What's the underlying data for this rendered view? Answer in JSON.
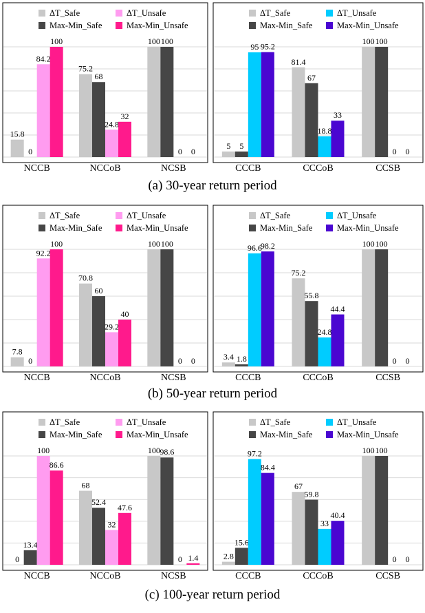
{
  "colors": {
    "dt_safe": "#c8c8c8",
    "mm_safe": "#464646",
    "dt_unsafe_pink": "#ff9cf0",
    "mm_unsafe_pink": "#ff1a8c",
    "dt_unsafe_cyan": "#00ccff",
    "mm_unsafe_purple": "#4a06d1",
    "grid": "#d9d9d9",
    "frame": "#000000"
  },
  "captions": [
    "(a) 30-year return period",
    "(b) 50-year return period",
    "(c) 100-year return period"
  ],
  "chart_data": [
    {
      "type": "bar",
      "categories": [
        "NCCB",
        "NCCoB",
        "NCSB"
      ],
      "series": [
        {
          "name": "ΔT_Safe",
          "values": [
            15.8,
            75.2,
            100
          ]
        },
        {
          "name": "Max-Min_Safe",
          "values": [
            0,
            68,
            100
          ]
        },
        {
          "name": "ΔT_Unsafe",
          "values": [
            84.2,
            24.8,
            0
          ]
        },
        {
          "name": "Max-Min_Unsafe",
          "values": [
            100,
            32,
            0
          ]
        }
      ],
      "ylim": [
        0,
        100
      ],
      "grid": true,
      "legend": "top"
    },
    {
      "type": "bar",
      "categories": [
        "CCCB",
        "CCCoB",
        "CCSB"
      ],
      "series": [
        {
          "name": "ΔT_Safe",
          "values": [
            5,
            81.4,
            100
          ]
        },
        {
          "name": "Max-Min_Safe",
          "values": [
            5,
            67,
            100
          ]
        },
        {
          "name": "ΔT_Unsafe",
          "values": [
            95,
            18.8,
            0
          ]
        },
        {
          "name": "Max-Min_Unsafe",
          "values": [
            95.2,
            33,
            0
          ]
        }
      ],
      "ylim": [
        0,
        100
      ],
      "grid": true,
      "legend": "top"
    },
    {
      "type": "bar",
      "categories": [
        "NCCB",
        "NCCoB",
        "NCSB"
      ],
      "series": [
        {
          "name": "ΔT_Safe",
          "values": [
            7.8,
            70.8,
            100
          ]
        },
        {
          "name": "Max-Min_Safe",
          "values": [
            0,
            60,
            100
          ]
        },
        {
          "name": "ΔT_Unsafe",
          "values": [
            92.2,
            29.2,
            0
          ]
        },
        {
          "name": "Max-Min_Unsafe",
          "values": [
            100,
            40,
            0
          ]
        }
      ],
      "ylim": [
        0,
        100
      ],
      "grid": true,
      "legend": "top"
    },
    {
      "type": "bar",
      "categories": [
        "CCCB",
        "CCCoB",
        "CCSB"
      ],
      "series": [
        {
          "name": "ΔT_Safe",
          "values": [
            3.4,
            75.2,
            100
          ]
        },
        {
          "name": "Max-Min_Safe",
          "values": [
            1.8,
            55.8,
            100
          ]
        },
        {
          "name": "ΔT_Unsafe",
          "values": [
            96.6,
            24.8,
            0
          ]
        },
        {
          "name": "Max-Min_Unsafe",
          "values": [
            98.2,
            44.4,
            0
          ]
        }
      ],
      "ylim": [
        0,
        100
      ],
      "grid": true,
      "legend": "top"
    },
    {
      "type": "bar",
      "categories": [
        "NCCB",
        "NCCoB",
        "NCSB"
      ],
      "series": [
        {
          "name": "ΔT_Safe",
          "values": [
            0,
            68,
            100
          ]
        },
        {
          "name": "Max-Min_Safe",
          "values": [
            13.4,
            52.4,
            98.6
          ]
        },
        {
          "name": "ΔT_Unsafe",
          "values": [
            100,
            32,
            0
          ]
        },
        {
          "name": "Max-Min_Unsafe",
          "values": [
            86.6,
            47.6,
            1.4
          ]
        }
      ],
      "ylim": [
        0,
        100
      ],
      "grid": true,
      "legend": "top"
    },
    {
      "type": "bar",
      "categories": [
        "CCCB",
        "CCCoB",
        "CCSB"
      ],
      "series": [
        {
          "name": "ΔT_Safe",
          "values": [
            2.8,
            67,
            100
          ]
        },
        {
          "name": "Max-Min_Safe",
          "values": [
            15.6,
            59.8,
            100
          ]
        },
        {
          "name": "ΔT_Unsafe",
          "values": [
            97.2,
            33,
            0
          ]
        },
        {
          "name": "Max-Min_Unsafe",
          "values": [
            84.4,
            40.4,
            0
          ]
        }
      ],
      "ylim": [
        0,
        100
      ],
      "grid": true,
      "legend": "top"
    }
  ]
}
